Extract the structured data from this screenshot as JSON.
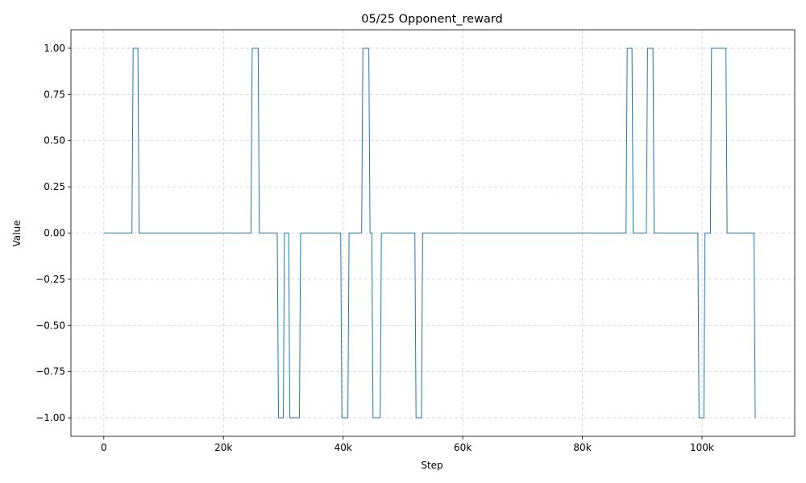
{
  "chart_data": {
    "type": "line",
    "title": "05/25  Opponent_reward",
    "xlabel": "Step",
    "ylabel": "Value",
    "xlim": [
      -5500,
      115500
    ],
    "ylim": [
      -1.1,
      1.1
    ],
    "grid": true,
    "line_color": "#1f77b4",
    "grid_color": "#b0b0b0",
    "x_ticks": [
      0,
      20000,
      40000,
      60000,
      80000,
      100000
    ],
    "x_tick_labels": [
      "0",
      "20k",
      "40k",
      "60k",
      "80k",
      "100k"
    ],
    "y_ticks": [
      1.0,
      0.75,
      0.5,
      0.25,
      0.0,
      -0.25,
      -0.5,
      -0.75,
      -1.0
    ],
    "y_tick_labels": [
      "1.00",
      "0.75",
      "0.50",
      "0.25",
      "0.00",
      "−0.25",
      "−0.50",
      "−0.75",
      "−1.00"
    ],
    "series": [
      {
        "x": [
          0,
          4700,
          4900,
          5700,
          5900,
          24600,
          24800,
          25800,
          26000,
          29000,
          29200,
          30000,
          30200,
          30900,
          31100,
          31300,
          31500,
          32700,
          32900,
          39600,
          39800,
          40800,
          41000,
          43100,
          43300,
          44300,
          44500,
          44800,
          45000,
          45200,
          45400,
          46200,
          46400,
          52000,
          52200,
          53100,
          53300,
          87300,
          87500,
          88300,
          88500,
          89500,
          89700,
          90700,
          90900,
          91800,
          92000,
          99300,
          99500,
          100300,
          100500,
          101400,
          101600,
          104000,
          104200,
          108700,
          108900
        ],
        "y": [
          0,
          0,
          1,
          1,
          0,
          0,
          1,
          1,
          0,
          0,
          -1,
          -1,
          0,
          0,
          -1,
          -1,
          -1,
          -1,
          0,
          0,
          -1,
          -1,
          0,
          0,
          1,
          1,
          0,
          0,
          -1,
          -1,
          -1,
          -1,
          0,
          0,
          -1,
          -1,
          0,
          0,
          1,
          1,
          0,
          0,
          0,
          0,
          1,
          1,
          0,
          0,
          -1,
          -1,
          0,
          0,
          1,
          1,
          0,
          0,
          -1
        ]
      }
    ]
  }
}
